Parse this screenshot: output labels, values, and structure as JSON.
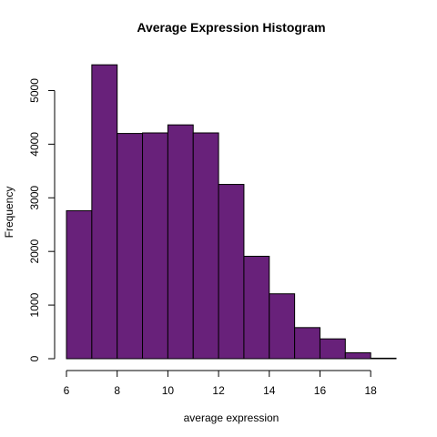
{
  "chart_data": {
    "type": "bar",
    "title": "Average Expression Histogram",
    "xlabel": "average expression",
    "ylabel": "Frequency",
    "bin_edges": [
      6,
      7,
      8,
      9,
      10,
      11,
      12,
      13,
      14,
      15,
      16,
      17,
      18,
      19
    ],
    "values": [
      2760,
      5480,
      4200,
      4210,
      4360,
      4210,
      3250,
      1910,
      1210,
      580,
      370,
      110,
      10
    ],
    "xlim": [
      6,
      19
    ],
    "ylim": [
      0,
      5500
    ],
    "x_ticks": [
      6,
      8,
      10,
      12,
      14,
      16,
      18
    ],
    "y_ticks": [
      0,
      1000,
      2000,
      3000,
      4000,
      5000
    ],
    "bar_color": "#68217a",
    "grid": false,
    "legend": "none"
  }
}
